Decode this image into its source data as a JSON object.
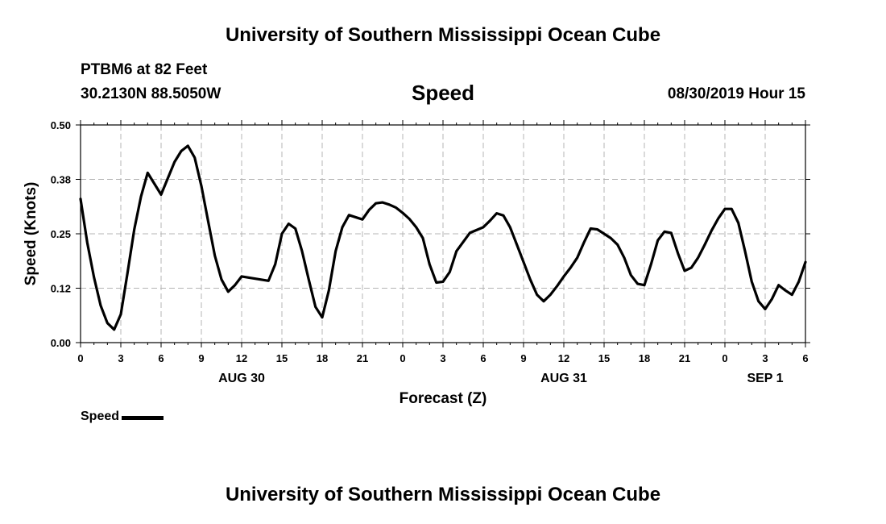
{
  "page": {
    "header_title": "University of Southern Mississippi Ocean Cube",
    "footer_title": "University of Southern Mississippi Ocean Cube",
    "station": "PTBM6 at 82 Feet",
    "coordinates": "30.2130N 88.5050W",
    "variable": "Speed",
    "datetime": "08/30/2019 Hour 15"
  },
  "colors": {
    "line": "#000000",
    "grid": "#b4b4b4",
    "axis": "#000000"
  },
  "chart_data": {
    "type": "line",
    "title": "Speed",
    "xlabel": "Forecast (Z)",
    "ylabel": "Speed (Knots)",
    "ylim": [
      0.0,
      0.5
    ],
    "xlim": [
      0,
      54
    ],
    "grid": true,
    "y_ticks": [
      0.0,
      0.125,
      0.25,
      0.375,
      0.5
    ],
    "y_tick_labels": [
      "0.00",
      "0.12",
      "0.25",
      "0.38",
      "0.50"
    ],
    "x_ticks": [
      0,
      3,
      6,
      9,
      12,
      15,
      18,
      21,
      24,
      27,
      30,
      33,
      36,
      39,
      42,
      45,
      48,
      51,
      54
    ],
    "x_tick_labels": [
      "0",
      "3",
      "6",
      "9",
      "12",
      "15",
      "18",
      "21",
      "0",
      "3",
      "6",
      "9",
      "12",
      "15",
      "18",
      "21",
      "0",
      "3",
      "6"
    ],
    "day_labels": [
      {
        "label": "AUG 30",
        "x": 12
      },
      {
        "label": "AUG 31",
        "x": 36
      },
      {
        "label": "SEP 1",
        "x": 51
      }
    ],
    "series": [
      {
        "name": "Speed",
        "x": [
          0,
          0.5,
          1,
          1.5,
          2,
          2.5,
          3,
          3.5,
          4,
          4.5,
          5,
          6,
          7,
          7.5,
          8,
          8.5,
          9,
          9.5,
          10,
          10.5,
          11,
          11.5,
          12,
          14,
          14.5,
          15,
          15.5,
          16,
          16.5,
          17,
          17.5,
          18,
          18.5,
          19,
          19.5,
          20,
          21,
          21.5,
          22,
          22.5,
          23,
          23.5,
          24,
          24.5,
          25,
          25.5,
          26,
          26.5,
          27,
          27.5,
          28,
          29,
          30,
          30.5,
          31,
          31.5,
          32,
          32.5,
          33,
          33.5,
          34,
          34.5,
          35,
          35.5,
          36,
          36.5,
          37,
          37.5,
          38,
          38.5,
          39,
          39.5,
          40,
          40.5,
          41,
          41.5,
          42,
          42.5,
          43,
          43.5,
          44,
          44.5,
          45,
          45.5,
          46,
          46.5,
          47,
          47.5,
          48,
          48.5,
          49,
          49.5,
          50,
          50.5,
          51,
          51.5,
          52,
          52.5,
          53,
          53.5,
          54
        ],
        "values": [
          0.33,
          0.23,
          0.15,
          0.085,
          0.045,
          0.03,
          0.065,
          0.16,
          0.26,
          0.335,
          0.39,
          0.34,
          0.415,
          0.44,
          0.452,
          0.425,
          0.36,
          0.28,
          0.2,
          0.145,
          0.117,
          0.132,
          0.152,
          0.142,
          0.18,
          0.25,
          0.273,
          0.262,
          0.21,
          0.145,
          0.082,
          0.058,
          0.12,
          0.21,
          0.265,
          0.293,
          0.283,
          0.305,
          0.32,
          0.322,
          0.317,
          0.31,
          0.298,
          0.284,
          0.265,
          0.24,
          0.18,
          0.138,
          0.14,
          0.162,
          0.21,
          0.252,
          0.265,
          0.28,
          0.297,
          0.292,
          0.265,
          0.225,
          0.185,
          0.145,
          0.11,
          0.095,
          0.11,
          0.13,
          0.152,
          0.172,
          0.195,
          0.23,
          0.262,
          0.26,
          0.25,
          0.24,
          0.225,
          0.195,
          0.155,
          0.135,
          0.132,
          0.18,
          0.235,
          0.255,
          0.252,
          0.205,
          0.165,
          0.172,
          0.195,
          0.225,
          0.257,
          0.285,
          0.307,
          0.307,
          0.275,
          0.21,
          0.14,
          0.095,
          0.077,
          0.1,
          0.132,
          0.12,
          0.11,
          0.14,
          0.185
        ]
      }
    ],
    "legend": {
      "label": "Speed",
      "position": "bottom-left"
    }
  }
}
